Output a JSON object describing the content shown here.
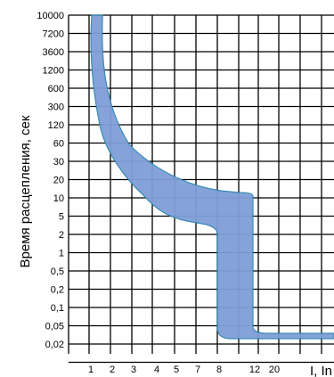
{
  "chart_data": {
    "type": "area",
    "title": "",
    "ylabel": "Время расцепления, сек",
    "xlabel": "I, In",
    "y_ticks": [
      "10000",
      "7200",
      "3600",
      "1200",
      "600",
      "300",
      "120",
      "60",
      "30",
      "20",
      "10",
      "5",
      "2",
      "1",
      "0,5",
      "0,2",
      "0,1",
      "0,05",
      "0,02"
    ],
    "x_ticks": [
      "1",
      "2",
      "3",
      "4",
      "5",
      "7",
      "8",
      "12",
      "20"
    ],
    "grid": true,
    "series": [
      {
        "band": "trip-curve",
        "color": "#7f9fd8",
        "upper_boundary": [
          {
            "x": 1,
            "y": "10000"
          },
          {
            "x": 1.05,
            "y": "3600"
          },
          {
            "x": 1.3,
            "y": "1200"
          },
          {
            "x": 2,
            "y": "300"
          },
          {
            "x": 3,
            "y": "60"
          },
          {
            "x": 4,
            "y": "30"
          },
          {
            "x": 5,
            "y": "20"
          },
          {
            "x": 7,
            "y": "10"
          },
          {
            "x": 8,
            "y": "10"
          },
          {
            "x": 12,
            "y": "10"
          },
          {
            "x": 12,
            "y": "0,02"
          },
          {
            "x": 20,
            "y": "0,02"
          }
        ],
        "lower_boundary": [
          {
            "x": 1,
            "y": "10000"
          },
          {
            "x": 1,
            "y": "1200"
          },
          {
            "x": 1.5,
            "y": "300"
          },
          {
            "x": 2,
            "y": "120"
          },
          {
            "x": 3,
            "y": "30"
          },
          {
            "x": 4,
            "y": "10"
          },
          {
            "x": 5,
            "y": "5"
          },
          {
            "x": 7,
            "y": "2"
          },
          {
            "x": 8,
            "y": "2"
          },
          {
            "x": 8,
            "y": "0,02"
          },
          {
            "x": 20,
            "y": "0,02"
          }
        ]
      }
    ]
  }
}
